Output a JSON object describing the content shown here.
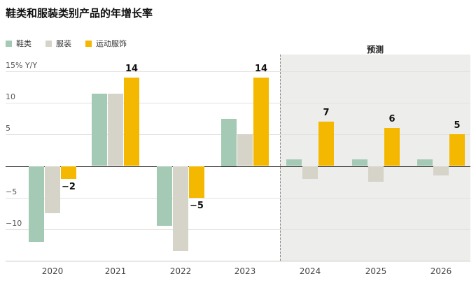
{
  "title": "鞋类和服装类别产品的年增长率",
  "forecast_label": "预测",
  "legend": [
    {
      "label": "鞋类",
      "color": "#a4cab5"
    },
    {
      "label": "服装",
      "color": "#d6d3c9"
    },
    {
      "label": "运动服饰",
      "color": "#f5b800"
    }
  ],
  "chart_data": {
    "type": "bar",
    "title": "鞋类和服装类别产品的年增长率",
    "categories": [
      "2020",
      "2021",
      "2022",
      "2023",
      "2024",
      "2025",
      "2026"
    ],
    "series": [
      {
        "name": "鞋类",
        "color": "#a4cab5",
        "values": [
          -12,
          11.5,
          -9.5,
          7.5,
          1,
          1,
          1
        ]
      },
      {
        "name": "服装",
        "color": "#d6d3c9",
        "values": [
          -7.5,
          11.5,
          -13.5,
          5,
          -2,
          -2.5,
          -1.5
        ]
      },
      {
        "name": "运动服饰",
        "color": "#f5b800",
        "values": [
          -2,
          14,
          -5,
          14,
          7,
          6,
          5
        ],
        "labels": [
          "−2",
          "14",
          "−5",
          "14",
          "7",
          "6",
          "5"
        ]
      }
    ],
    "ylim": [
      -15,
      15
    ],
    "yticks": [
      15,
      10,
      5,
      0,
      -5,
      -10,
      -15
    ],
    "ytick_labels": {
      "15": "15% Y/Y",
      "10": "10",
      "5": "5",
      "-5": "−5",
      "-10": "−10"
    },
    "grid": true,
    "legend_position": "top-left",
    "forecast_start_category": "2024"
  }
}
